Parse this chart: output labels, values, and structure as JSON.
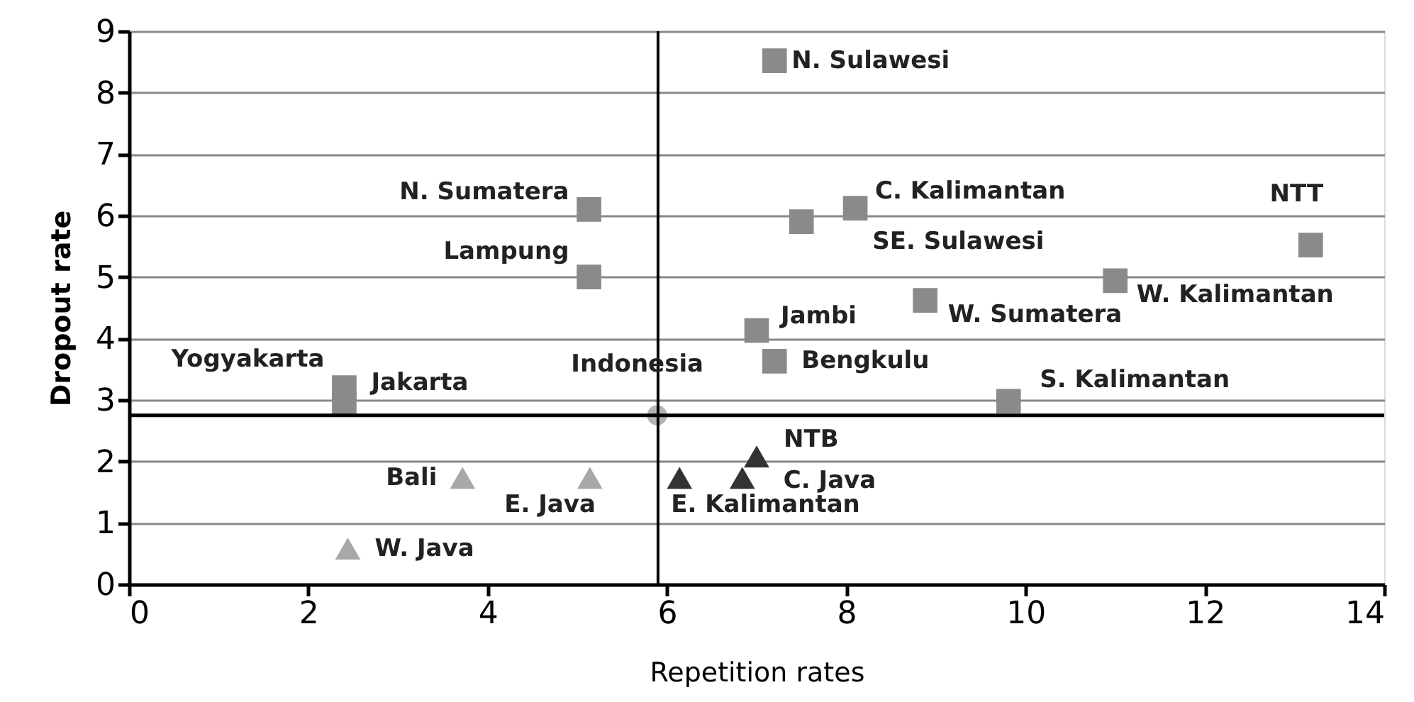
{
  "chart_data": {
    "type": "scatter",
    "xlabel": "Repetition rates",
    "ylabel": "Dropout rate",
    "xlim": [
      0,
      14
    ],
    "ylim": [
      0,
      9
    ],
    "xticks": [
      0,
      2,
      4,
      6,
      8,
      10,
      12,
      14
    ],
    "yticks": [
      0,
      1,
      2,
      3,
      4,
      5,
      6,
      7,
      8,
      9
    ],
    "grid": "y",
    "series": [
      {
        "color": "#8a8a8a",
        "marker": "square",
        "x": [
          7.2,
          5.13,
          5.13,
          8.1,
          7.5,
          13.18,
          11.0,
          8.88,
          7.0,
          7.2,
          9.81,
          2.4,
          2.4
        ],
        "values": [
          8.52,
          6.1,
          5.0,
          6.12,
          5.9,
          5.52,
          4.94,
          4.62,
          4.13,
          3.63,
          2.98,
          3.2,
          2.93
        ]
      },
      {
        "color": "#b4b4b4",
        "marker": "circle",
        "x": [
          5.89
        ],
        "values": [
          2.75
        ]
      },
      {
        "color": "#a8a8a8",
        "marker": "triangle",
        "x": [
          3.72,
          5.14,
          2.44
        ],
        "values": [
          1.73,
          1.73,
          0.58
        ]
      },
      {
        "color": "#333333",
        "marker": "triangle",
        "x": [
          6.14,
          6.84,
          7.0
        ],
        "values": [
          1.73,
          1.73,
          2.08
        ]
      }
    ],
    "ref_lines": [
      {
        "axis": "x",
        "value": 5.9,
        "color": "#000000"
      },
      {
        "axis": "y",
        "value": 2.75,
        "color": "#000000"
      }
    ],
    "annotations": [
      {
        "text": "N. Sulawesi",
        "x": 7.2,
        "y": 8.52
      },
      {
        "text": "N. Sumatera",
        "x": 5.13,
        "y": 6.1
      },
      {
        "text": "Lampung",
        "x": 5.13,
        "y": 5.0
      },
      {
        "text": "C. Kalimantan",
        "x": 8.1,
        "y": 6.12
      },
      {
        "text": "SE. Sulawesi",
        "x": 7.5,
        "y": 5.9
      },
      {
        "text": "NTT",
        "x": 13.18,
        "y": 5.52
      },
      {
        "text": "W. Kalimantan",
        "x": 11.0,
        "y": 4.94
      },
      {
        "text": "W. Sumatera",
        "x": 8.88,
        "y": 4.62
      },
      {
        "text": "Jambi",
        "x": 7.0,
        "y": 4.13
      },
      {
        "text": "Bengkulu",
        "x": 7.2,
        "y": 3.63
      },
      {
        "text": "S. Kalimantan",
        "x": 9.81,
        "y": 2.98
      },
      {
        "text": "Yogyakarta",
        "x": 2.4,
        "y": 3.2
      },
      {
        "text": "Jakarta",
        "x": 2.4,
        "y": 2.93
      },
      {
        "text": "Indonesia",
        "x": 5.89,
        "y": 2.75
      },
      {
        "text": "Bali",
        "x": 3.72,
        "y": 1.73
      },
      {
        "text": "E. Java",
        "x": 5.14,
        "y": 1.73
      },
      {
        "text": "W. Java",
        "x": 2.44,
        "y": 0.58
      },
      {
        "text": "E. Kalimantan",
        "x": 6.14,
        "y": 1.73
      },
      {
        "text": "C. Java",
        "x": 6.84,
        "y": 1.73
      },
      {
        "text": "NTB",
        "x": 7.0,
        "y": 2.08
      }
    ]
  }
}
